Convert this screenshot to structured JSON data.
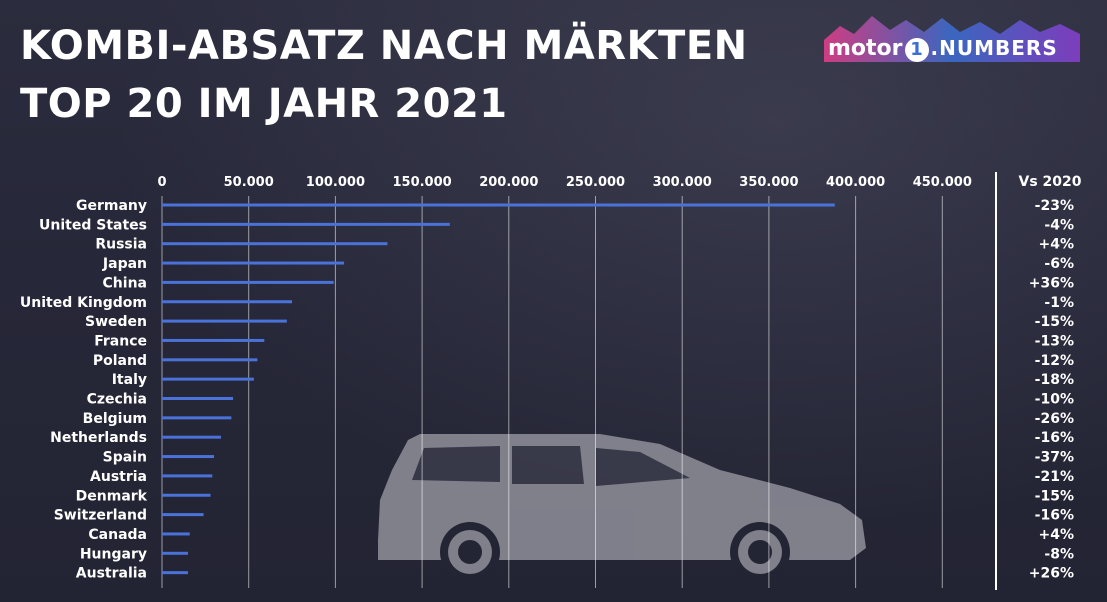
{
  "header": {
    "title_line1": "KOMBI-ABSATZ NACH MÄRKTEN",
    "title_line2": "TOP 20 IM JAHR 2021"
  },
  "logo": {
    "word": "motor",
    "one": "1",
    "suffix": ".NUMBERS",
    "colors": [
      "#e83e8c",
      "#3b6fd4",
      "#8a3fd1"
    ]
  },
  "chart_data": {
    "type": "bar",
    "orientation": "horizontal",
    "title": "KOMBI-ABSATZ NACH MÄRKTEN / TOP 20 IM JAHR 2021",
    "xlim": [
      0,
      480000
    ],
    "x_ticks": [
      0,
      50000,
      100000,
      150000,
      200000,
      250000,
      300000,
      350000,
      400000,
      450000
    ],
    "x_tick_labels": [
      "0",
      "50.000",
      "100.000",
      "150.000",
      "200.000",
      "250.000",
      "300.000",
      "350.000",
      "400.000",
      "450.000"
    ],
    "grid": true,
    "bar_color": "#4a72d8",
    "change_header": "Vs 2020",
    "categories": [
      "Germany",
      "United States",
      "Russia",
      "Japan",
      "China",
      "United Kingdom",
      "Sweden",
      "France",
      "Poland",
      "Italy",
      "Czechia",
      "Belgium",
      "Netherlands",
      "Spain",
      "Austria",
      "Denmark",
      "Switzerland",
      "Canada",
      "Hungary",
      "Australia"
    ],
    "values": [
      388000,
      166000,
      130000,
      105000,
      99000,
      75000,
      72000,
      59000,
      55000,
      53000,
      41000,
      40000,
      34000,
      30000,
      29000,
      28000,
      24000,
      16000,
      15000,
      15000
    ],
    "change_vs_2020": [
      "-23%",
      "-4%",
      "+4%",
      "-6%",
      "+36%",
      "-1%",
      "-15%",
      "-13%",
      "-12%",
      "-18%",
      "-10%",
      "-26%",
      "-16%",
      "-37%",
      "-21%",
      "-15%",
      "-16%",
      "+4%",
      "-8%",
      "+26%"
    ]
  }
}
